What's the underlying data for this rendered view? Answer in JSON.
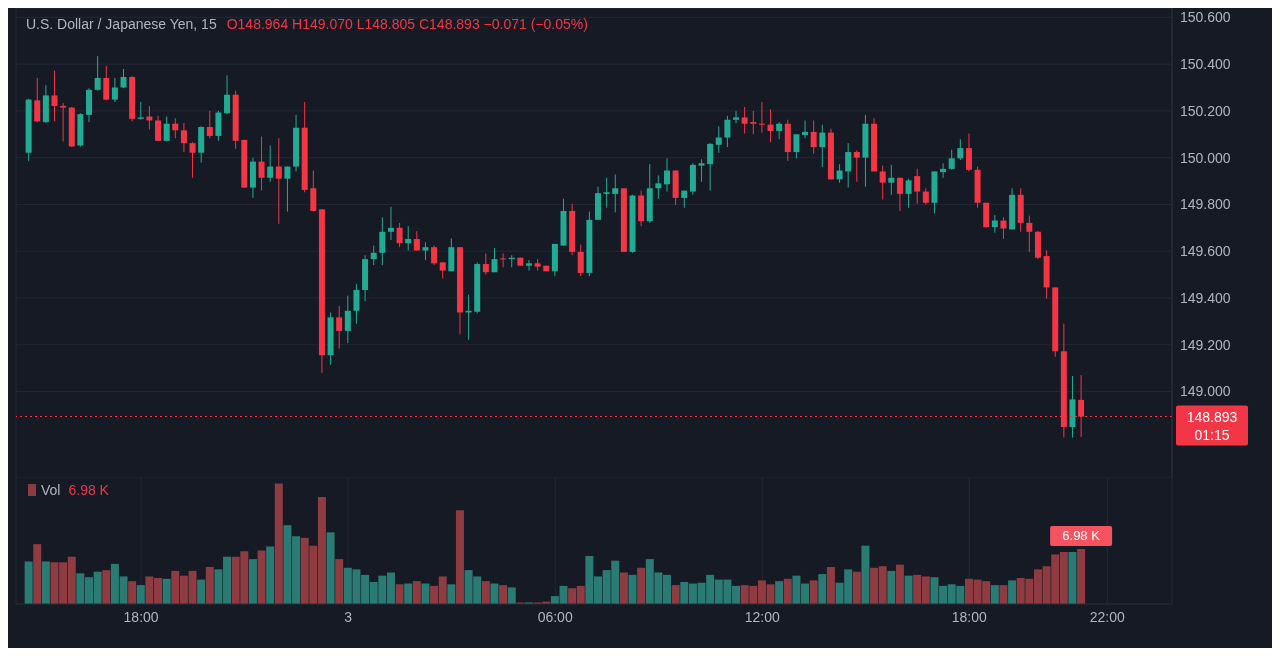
{
  "chart_data": [
    {
      "type": "candlestick",
      "tick_labels": "y",
      "grid": true,
      "ylim": [
        148.63,
        150.64
      ],
      "yticks": [
        {
          "value": 149,
          "label": "149.000"
        },
        {
          "value": 149.2,
          "label": "149.200"
        },
        {
          "value": 149.4,
          "label": "149.400"
        },
        {
          "value": 149.6,
          "label": "149.600"
        },
        {
          "value": 149.8,
          "label": "149.800"
        },
        {
          "value": 150,
          "label": "150.000"
        },
        {
          "value": 150.2,
          "label": "150.200"
        },
        {
          "value": 150.4,
          "label": "150.400"
        },
        {
          "value": 150.6,
          "label": "150.600"
        }
      ],
      "ref_lines": [
        {
          "axis": "y",
          "value": 148.893,
          "label": "148.893",
          "color": "#f23645",
          "line_style": "dotted"
        }
      ],
      "title": "U.S. Dollar / Japanese Yen, 15",
      "subtitle": "O148.964 H149.070 L148.805 C148.893 −0.071 (−0.05%)",
      "annotations": [
        "01:15"
      ],
      "categories": [
        null,
        null,
        null,
        null,
        null,
        null,
        null,
        null,
        null,
        null,
        null,
        null,
        null,
        null,
        null,
        null,
        null,
        null,
        null,
        null,
        null,
        null,
        null,
        null,
        null,
        null,
        null,
        null,
        null,
        null,
        null,
        null,
        null,
        null,
        null,
        null,
        null,
        null,
        null,
        null,
        null,
        null,
        null,
        null,
        null,
        null,
        null,
        null,
        null,
        null,
        null,
        null,
        null,
        null,
        null,
        null,
        null,
        null,
        null,
        null,
        null,
        null,
        null,
        null,
        null,
        null,
        null,
        null,
        null,
        null,
        null,
        null,
        null,
        null,
        null,
        null,
        null,
        null,
        null,
        null,
        null,
        null,
        null,
        null,
        null,
        null,
        null,
        null,
        null,
        null,
        null,
        null,
        null,
        null,
        null,
        null,
        null,
        null,
        null,
        null,
        null,
        null,
        null,
        null,
        null,
        null,
        null,
        null,
        null,
        null,
        null,
        null,
        null,
        null,
        null,
        null,
        null,
        null,
        null,
        null,
        null,
        null,
        null,
        null,
        null,
        null
      ],
      "ohlc": [
        [
          150.021,
          150.252,
          149.986,
          150.248
        ],
        [
          150.245,
          150.341,
          150.152,
          150.155
        ],
        [
          150.152,
          150.31,
          150.148,
          150.266
        ],
        [
          150.266,
          150.372,
          150.155,
          150.221
        ],
        [
          150.221,
          150.234,
          150.069,
          150.214
        ],
        [
          150.214,
          150.217,
          150.045,
          150.048
        ],
        [
          150.052,
          150.19,
          150.048,
          150.186
        ],
        [
          150.183,
          150.297,
          150.152,
          150.29
        ],
        [
          150.29,
          150.434,
          150.286,
          150.341
        ],
        [
          150.341,
          150.393,
          150.245,
          150.248
        ],
        [
          150.248,
          150.341,
          150.238,
          150.3
        ],
        [
          150.3,
          150.379,
          150.297,
          150.345
        ],
        [
          150.345,
          150.348,
          150.155,
          150.166
        ],
        [
          150.166,
          150.238,
          150.162,
          150.172
        ],
        [
          150.176,
          150.221,
          150.121,
          150.159
        ],
        [
          150.159,
          150.179,
          150.072,
          150.072
        ],
        [
          150.072,
          150.176,
          150.069,
          150.145
        ],
        [
          150.145,
          150.169,
          150.083,
          150.117
        ],
        [
          150.117,
          150.148,
          150.024,
          150.062
        ],
        [
          150.062,
          150.066,
          149.914,
          150.021
        ],
        [
          150.021,
          150.134,
          149.979,
          150.131
        ],
        [
          150.131,
          150.2,
          150.083,
          150.093
        ],
        [
          150.093,
          150.2,
          150.072,
          150.193
        ],
        [
          150.19,
          150.352,
          150.186,
          150.269
        ],
        [
          150.269,
          150.286,
          150.038,
          150.072
        ],
        [
          150.076,
          150.076,
          149.872,
          149.872
        ],
        [
          149.872,
          150.0,
          149.828,
          149.983
        ],
        [
          149.983,
          150.09,
          149.859,
          149.914
        ],
        [
          149.914,
          150.052,
          149.897,
          149.962
        ],
        [
          149.962,
          150.083,
          149.717,
          149.91
        ],
        [
          149.91,
          149.962,
          149.769,
          149.962
        ],
        [
          149.962,
          150.183,
          149.941,
          150.128
        ],
        [
          150.128,
          150.238,
          149.852,
          149.862
        ],
        [
          149.869,
          149.945,
          149.769,
          149.772
        ],
        [
          149.779,
          149.779,
          149.079,
          149.155
        ],
        [
          149.155,
          149.338,
          149.114,
          149.317
        ],
        [
          149.317,
          149.366,
          149.183,
          149.259
        ],
        [
          149.259,
          149.41,
          149.207,
          149.345
        ],
        [
          149.345,
          149.459,
          149.29,
          149.434
        ],
        [
          149.434,
          149.583,
          149.386,
          149.566
        ],
        [
          149.566,
          149.624,
          149.541,
          149.593
        ],
        [
          149.593,
          149.745,
          149.541,
          149.683
        ],
        [
          149.683,
          149.79,
          149.648,
          149.7
        ],
        [
          149.7,
          149.721,
          149.617,
          149.634
        ],
        [
          149.634,
          149.707,
          149.603,
          149.652
        ],
        [
          149.652,
          149.686,
          149.603,
          149.603
        ],
        [
          149.603,
          149.638,
          149.562,
          149.617
        ],
        [
          149.617,
          149.624,
          149.541,
          149.548
        ],
        [
          149.552,
          149.552,
          149.483,
          149.517
        ],
        [
          149.514,
          149.655,
          149.514,
          149.617
        ],
        [
          149.617,
          149.617,
          149.245,
          149.338
        ],
        [
          149.338,
          149.414,
          149.221,
          149.345
        ],
        [
          149.341,
          149.552,
          149.334,
          149.545
        ],
        [
          149.545,
          149.59,
          149.5,
          149.51
        ],
        [
          149.51,
          149.614,
          149.51,
          149.566
        ],
        [
          149.569,
          149.59,
          149.531,
          149.566
        ],
        [
          149.566,
          149.583,
          149.531,
          149.572
        ],
        [
          149.572,
          149.572,
          149.538,
          149.538
        ],
        [
          149.538,
          149.562,
          149.517,
          149.548
        ],
        [
          149.548,
          149.566,
          149.517,
          149.534
        ],
        [
          149.538,
          149.538,
          149.514,
          149.514
        ],
        [
          149.514,
          149.631,
          149.493,
          149.631
        ],
        [
          149.624,
          149.824,
          149.624,
          149.772
        ],
        [
          149.772,
          149.803,
          149.583,
          149.597
        ],
        [
          149.597,
          149.628,
          149.493,
          149.507
        ],
        [
          149.507,
          149.769,
          149.493,
          149.734
        ],
        [
          149.734,
          149.876,
          149.734,
          149.848
        ],
        [
          149.845,
          149.914,
          149.786,
          149.852
        ],
        [
          149.845,
          149.928,
          149.766,
          149.869
        ],
        [
          149.869,
          149.869,
          149.597,
          149.597
        ],
        [
          149.597,
          149.841,
          149.593,
          149.838
        ],
        [
          149.838,
          149.859,
          149.707,
          149.728
        ],
        [
          149.728,
          149.972,
          149.721,
          149.869
        ],
        [
          149.869,
          149.924,
          149.824,
          149.89
        ],
        [
          149.886,
          149.997,
          149.855,
          149.945
        ],
        [
          149.945,
          149.945,
          149.797,
          149.828
        ],
        [
          149.828,
          149.859,
          149.786,
          149.859
        ],
        [
          149.855,
          149.976,
          149.841,
          149.969
        ],
        [
          149.966,
          149.993,
          149.897,
          149.976
        ],
        [
          149.972,
          150.062,
          149.859,
          150.059
        ],
        [
          150.055,
          150.134,
          150.021,
          150.086
        ],
        [
          150.086,
          150.179,
          150.045,
          150.162
        ],
        [
          150.162,
          150.2,
          150.148,
          150.172
        ],
        [
          150.172,
          150.217,
          150.103,
          150.145
        ],
        [
          150.152,
          150.2,
          150.1,
          150.145
        ],
        [
          150.145,
          150.238,
          150.107,
          150.141
        ],
        [
          150.141,
          150.207,
          150.066,
          150.114
        ],
        [
          150.114,
          150.152,
          150.079,
          150.145
        ],
        [
          150.145,
          150.162,
          149.986,
          150.024
        ],
        [
          150.024,
          150.1,
          149.997,
          150.1
        ],
        [
          150.097,
          150.159,
          150.083,
          150.11
        ],
        [
          150.11,
          150.159,
          150.017,
          150.045
        ],
        [
          150.045,
          150.141,
          149.959,
          150.107
        ],
        [
          150.107,
          150.124,
          149.907,
          149.907
        ],
        [
          149.907,
          149.972,
          149.893,
          149.945
        ],
        [
          149.941,
          150.062,
          149.872,
          150.024
        ],
        [
          150.024,
          150.031,
          149.897,
          150.0
        ],
        [
          150.0,
          150.183,
          149.876,
          150.145
        ],
        [
          150.145,
          150.169,
          149.941,
          149.941
        ],
        [
          149.941,
          149.966,
          149.821,
          149.893
        ],
        [
          149.893,
          149.969,
          149.841,
          149.914
        ],
        [
          149.914,
          149.914,
          149.772,
          149.845
        ],
        [
          149.845,
          149.91,
          149.786,
          149.903
        ],
        [
          149.921,
          149.952,
          149.803,
          149.855
        ],
        [
          149.855,
          149.869,
          149.8,
          149.807
        ],
        [
          149.807,
          149.941,
          149.762,
          149.941
        ],
        [
          149.938,
          149.976,
          149.914,
          149.952
        ],
        [
          149.952,
          150.034,
          149.948,
          149.997
        ],
        [
          149.997,
          150.079,
          149.99,
          150.041
        ],
        [
          150.041,
          150.103,
          149.941,
          149.948
        ],
        [
          149.948,
          149.962,
          149.786,
          149.807
        ],
        [
          149.807,
          149.807,
          149.7,
          149.703
        ],
        [
          149.703,
          149.755,
          149.679,
          149.731
        ],
        [
          149.731,
          149.745,
          149.652,
          149.697
        ],
        [
          149.693,
          149.869,
          149.693,
          149.841
        ],
        [
          149.841,
          149.869,
          149.683,
          149.721
        ],
        [
          149.721,
          149.752,
          149.597,
          149.683
        ],
        [
          149.683,
          149.686,
          149.566,
          149.572
        ],
        [
          149.579,
          149.603,
          149.397,
          149.445
        ],
        [
          149.445,
          149.445,
          149.148,
          149.172
        ],
        [
          149.172,
          149.29,
          148.803,
          148.848
        ],
        [
          148.848,
          149.066,
          148.803,
          148.966
        ],
        [
          148.964,
          149.07,
          148.805,
          148.893
        ],
        null,
        null,
        null
      ],
      "colors": [
        "#22ab94",
        "#f23645",
        "#22ab94",
        "#f23645",
        "#f23645",
        "#f23645",
        "#22ab94",
        "#22ab94",
        "#22ab94",
        "#f23645",
        "#22ab94",
        "#22ab94",
        "#f23645",
        "#22ab94",
        "#f23645",
        "#f23645",
        "#22ab94",
        "#f23645",
        "#f23645",
        "#f23645",
        "#22ab94",
        "#f23645",
        "#22ab94",
        "#22ab94",
        "#f23645",
        "#f23645",
        "#22ab94",
        "#f23645",
        "#22ab94",
        "#f23645",
        "#22ab94",
        "#22ab94",
        "#f23645",
        "#f23645",
        "#f23645",
        "#22ab94",
        "#f23645",
        "#22ab94",
        "#22ab94",
        "#22ab94",
        "#22ab94",
        "#22ab94",
        "#22ab94",
        "#f23645",
        "#22ab94",
        "#f23645",
        "#22ab94",
        "#f23645",
        "#f23645",
        "#22ab94",
        "#f23645",
        "#22ab94",
        "#22ab94",
        "#f23645",
        "#22ab94",
        "#f23645",
        "#22ab94",
        "#f23645",
        "#22ab94",
        "#f23645",
        "#f23645",
        "#22ab94",
        "#22ab94",
        "#f23645",
        "#f23645",
        "#22ab94",
        "#22ab94",
        "#22ab94",
        "#22ab94",
        "#f23645",
        "#22ab94",
        "#f23645",
        "#22ab94",
        "#22ab94",
        "#22ab94",
        "#f23645",
        "#22ab94",
        "#22ab94",
        "#22ab94",
        "#22ab94",
        "#22ab94",
        "#22ab94",
        "#22ab94",
        "#f23645",
        "#f23645",
        "#f23645",
        "#f23645",
        "#22ab94",
        "#f23645",
        "#22ab94",
        "#22ab94",
        "#f23645",
        "#22ab94",
        "#f23645",
        "#22ab94",
        "#22ab94",
        "#f23645",
        "#22ab94",
        "#f23645",
        "#f23645",
        "#22ab94",
        "#f23645",
        "#22ab94",
        "#f23645",
        "#f23645",
        "#22ab94",
        "#22ab94",
        "#22ab94",
        "#22ab94",
        "#f23645",
        "#f23645",
        "#f23645",
        "#22ab94",
        "#f23645",
        "#22ab94",
        "#f23645",
        "#f23645",
        "#f23645",
        "#f23645",
        "#f23645",
        "#f23645",
        "#22ab94",
        "#f23645",
        null,
        null,
        null
      ]
    },
    {
      "type": "bar",
      "tick_labels": "x",
      "grid": "x",
      "categories": [
        null,
        null,
        null,
        null,
        null,
        null,
        null,
        null,
        null,
        null,
        null,
        null,
        null,
        "18:00",
        null,
        null,
        null,
        null,
        null,
        null,
        null,
        null,
        null,
        null,
        null,
        null,
        null,
        null,
        null,
        null,
        null,
        null,
        null,
        null,
        null,
        null,
        null,
        "3",
        null,
        null,
        null,
        null,
        null,
        null,
        null,
        null,
        null,
        null,
        null,
        null,
        null,
        null,
        null,
        null,
        null,
        null,
        null,
        null,
        null,
        null,
        null,
        "06:00",
        null,
        null,
        null,
        null,
        null,
        null,
        null,
        null,
        null,
        null,
        null,
        null,
        null,
        null,
        null,
        null,
        null,
        null,
        null,
        null,
        null,
        null,
        null,
        "12:00",
        null,
        null,
        null,
        null,
        null,
        null,
        null,
        null,
        null,
        null,
        null,
        null,
        null,
        null,
        null,
        null,
        null,
        null,
        null,
        null,
        null,
        null,
        null,
        "18:00",
        null,
        null,
        null,
        null,
        null,
        null,
        null,
        null,
        null,
        null,
        null,
        null,
        null,
        null,
        null,
        "22:00"
      ],
      "series": [
        {
          "type": "bar",
          "name": "Vol",
          "values": [
            5.4,
            7.6,
            5.4,
            5.3,
            5.3,
            6.0,
            3.9,
            3.4,
            4.1,
            4.3,
            5.1,
            3.5,
            2.9,
            2.4,
            3.5,
            3.3,
            3.2,
            4.2,
            3.6,
            4.2,
            3.1,
            4.7,
            4.4,
            6.0,
            6.0,
            6.7,
            5.7,
            6.8,
            7.3,
            15.3,
            10.0,
            8.6,
            8.4,
            7.4,
            13.6,
            9.1,
            5.7,
            4.6,
            4.4,
            3.7,
            2.8,
            3.6,
            4.0,
            2.5,
            2.6,
            2.9,
            2.6,
            2.3,
            3.5,
            2.5,
            11.9,
            4.3,
            3.5,
            2.9,
            2.6,
            2.4,
            2.1,
            0.2,
            0.2,
            0.2,
            0.3,
            1.0,
            2.3,
            2.0,
            2.3,
            6.1,
            3.5,
            4.3,
            5.5,
            4.0,
            3.7,
            4.6,
            5.7,
            4.0,
            3.7,
            2.4,
            2.8,
            2.6,
            2.7,
            3.7,
            3.1,
            3.1,
            2.3,
            2.4,
            2.3,
            3.0,
            2.5,
            2.9,
            3.2,
            3.6,
            2.6,
            3.0,
            3.8,
            4.7,
            2.7,
            4.4,
            4.1,
            7.4,
            4.6,
            4.8,
            4.2,
            5.0,
            3.6,
            3.7,
            3.5,
            3.4,
            2.3,
            2.5,
            2.3,
            3.2,
            3.1,
            2.9,
            2.4,
            2.4,
            3.0,
            3.3,
            3.2,
            4.4,
            4.8,
            6.3,
            6.6,
            6.6,
            6.98,
            null,
            null,
            null
          ],
          "colors": [
            "#2a7b74",
            "#8e3b41",
            "#2a7b74",
            "#8e3b41",
            "#8e3b41",
            "#8e3b41",
            "#2a7b74",
            "#2a7b74",
            "#2a7b74",
            "#8e3b41",
            "#2a7b74",
            "#2a7b74",
            "#8e3b41",
            "#2a7b74",
            "#8e3b41",
            "#8e3b41",
            "#2a7b74",
            "#8e3b41",
            "#8e3b41",
            "#8e3b41",
            "#2a7b74",
            "#8e3b41",
            "#2a7b74",
            "#2a7b74",
            "#8e3b41",
            "#8e3b41",
            "#2a7b74",
            "#8e3b41",
            "#2a7b74",
            "#8e3b41",
            "#2a7b74",
            "#2a7b74",
            "#8e3b41",
            "#8e3b41",
            "#8e3b41",
            "#2a7b74",
            "#8e3b41",
            "#2a7b74",
            "#2a7b74",
            "#2a7b74",
            "#2a7b74",
            "#2a7b74",
            "#2a7b74",
            "#8e3b41",
            "#2a7b74",
            "#8e3b41",
            "#2a7b74",
            "#8e3b41",
            "#8e3b41",
            "#2a7b74",
            "#8e3b41",
            "#2a7b74",
            "#2a7b74",
            "#8e3b41",
            "#2a7b74",
            "#8e3b41",
            "#2a7b74",
            "#8e3b41",
            "#2a7b74",
            "#8e3b41",
            "#8e3b41",
            "#2a7b74",
            "#2a7b74",
            "#8e3b41",
            "#8e3b41",
            "#2a7b74",
            "#2a7b74",
            "#2a7b74",
            "#2a7b74",
            "#8e3b41",
            "#2a7b74",
            "#8e3b41",
            "#2a7b74",
            "#2a7b74",
            "#2a7b74",
            "#8e3b41",
            "#2a7b74",
            "#2a7b74",
            "#2a7b74",
            "#2a7b74",
            "#2a7b74",
            "#2a7b74",
            "#2a7b74",
            "#8e3b41",
            "#8e3b41",
            "#8e3b41",
            "#8e3b41",
            "#2a7b74",
            "#8e3b41",
            "#2a7b74",
            "#2a7b74",
            "#8e3b41",
            "#2a7b74",
            "#8e3b41",
            "#2a7b74",
            "#2a7b74",
            "#8e3b41",
            "#2a7b74",
            "#8e3b41",
            "#8e3b41",
            "#2a7b74",
            "#8e3b41",
            "#2a7b74",
            "#8e3b41",
            "#8e3b41",
            "#2a7b74",
            "#2a7b74",
            "#2a7b74",
            "#2a7b74",
            "#8e3b41",
            "#8e3b41",
            "#8e3b41",
            "#2a7b74",
            "#8e3b41",
            "#2a7b74",
            "#8e3b41",
            "#8e3b41",
            "#8e3b41",
            "#8e3b41",
            "#8e3b41",
            "#8e3b41",
            "#2a7b74",
            "#8e3b41",
            null,
            null,
            null
          ],
          "value_labels": [
            null,
            null,
            null,
            null,
            null,
            null,
            null,
            null,
            null,
            null,
            null,
            null,
            null,
            null,
            null,
            null,
            null,
            null,
            null,
            null,
            null,
            null,
            null,
            null,
            null,
            null,
            null,
            null,
            null,
            null,
            null,
            null,
            null,
            null,
            null,
            null,
            null,
            null,
            null,
            null,
            null,
            null,
            null,
            null,
            null,
            null,
            null,
            null,
            null,
            null,
            null,
            null,
            null,
            null,
            null,
            null,
            null,
            null,
            null,
            null,
            null,
            null,
            null,
            null,
            null,
            null,
            null,
            null,
            null,
            null,
            null,
            null,
            null,
            null,
            null,
            null,
            null,
            null,
            null,
            null,
            null,
            null,
            null,
            null,
            null,
            null,
            null,
            null,
            null,
            null,
            null,
            null,
            null,
            null,
            null,
            null,
            null,
            null,
            null,
            null,
            null,
            null,
            null,
            null,
            null,
            null,
            null,
            null,
            null,
            null,
            null,
            null,
            null,
            null,
            null,
            null,
            null,
            null,
            null,
            null,
            null,
            null,
            "6.98 K",
            null,
            null,
            null
          ]
        }
      ],
      "legend": "top left"
    }
  ]
}
